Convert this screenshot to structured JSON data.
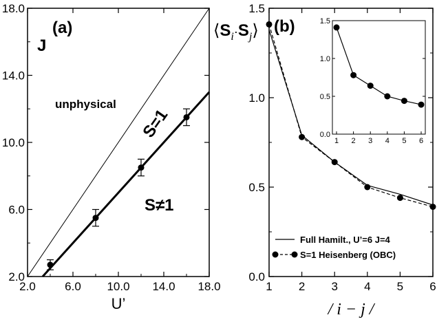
{
  "chart_data": [
    {
      "type": "line",
      "panel_label": "(a)",
      "xlabel": "U’",
      "ylabel": "J",
      "xlim": [
        2.0,
        18.0
      ],
      "ylim": [
        2.0,
        18.0
      ],
      "x_ticks": [
        "2.0",
        "6.0",
        "10.0",
        "14.0",
        "18.0"
      ],
      "y_ticks": [
        "2.0",
        "6.0",
        "10.0",
        "14.0",
        "18.0"
      ],
      "region_labels": {
        "unphysical": "unphysical",
        "s_eq_1": "S=1",
        "s_ne_1": "S≠1"
      },
      "diagonal_line": {
        "x": [
          2.0,
          18.0
        ],
        "y": [
          2.0,
          18.0
        ]
      },
      "fit_line": {
        "x": [
          2.0,
          18.0
        ],
        "y": [
          1.0,
          13.0
        ]
      },
      "series": [
        {
          "x": [
            4,
            8,
            12,
            16
          ],
          "y": [
            2.7,
            5.5,
            8.5,
            11.5
          ],
          "err": [
            0.3,
            0.5,
            0.5,
            0.5
          ]
        }
      ]
    },
    {
      "type": "line",
      "panel_label": "(b)",
      "ylabel": "⟨S_i·S_j⟩",
      "xlabel": "/ i − j /",
      "xlim": [
        1,
        6
      ],
      "ylim": [
        0.0,
        1.5
      ],
      "x_ticks": [
        "1",
        "2",
        "3",
        "4",
        "5",
        "6"
      ],
      "y_ticks": [
        "0.0",
        "0.5",
        "1.0",
        "1.5"
      ],
      "categories": [
        1,
        2,
        3,
        4,
        5,
        6
      ],
      "series": [
        {
          "name": "Full Hamilt., U’=6 J=4",
          "style": "solid",
          "values": [
            1.38,
            0.79,
            0.64,
            0.51,
            0.46,
            0.4
          ]
        },
        {
          "name": "S=1 Heisenberg (OBC)",
          "style": "dashed-dots",
          "values": [
            1.41,
            0.78,
            0.64,
            0.5,
            0.44,
            0.39
          ]
        }
      ],
      "inset": {
        "xlim": [
          1,
          6
        ],
        "ylim": [
          0.0,
          1.5
        ],
        "x_ticks": [
          "1",
          "2",
          "3",
          "4",
          "5",
          "6"
        ],
        "y_ticks": [
          "0.0",
          "0.5",
          "1.0",
          "1.5"
        ],
        "values": [
          1.41,
          0.78,
          0.64,
          0.5,
          0.44,
          0.39
        ]
      }
    }
  ]
}
